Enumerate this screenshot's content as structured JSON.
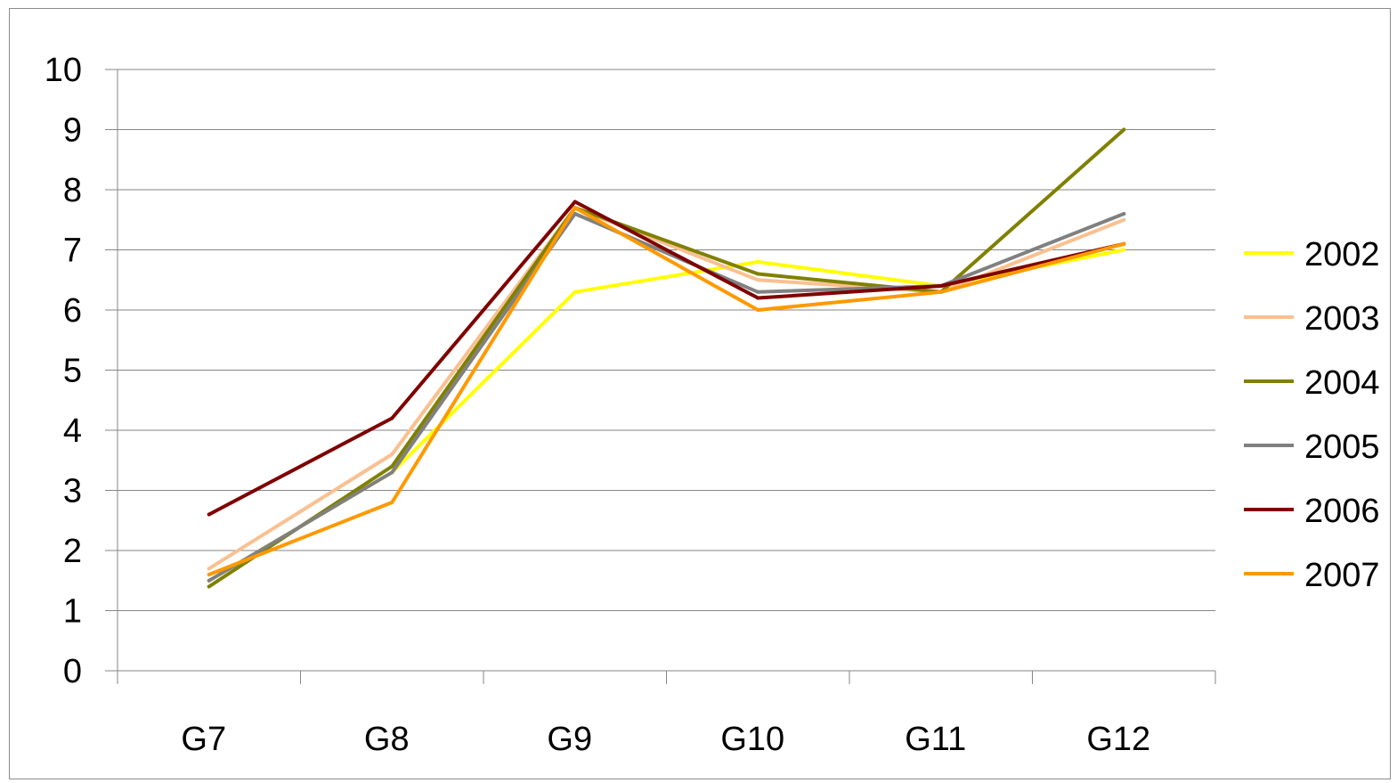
{
  "chart_data": {
    "type": "line",
    "title": "",
    "xlabel": "",
    "ylabel": "",
    "categories": [
      "G7",
      "G8",
      "G9",
      "G10",
      "G11",
      "G12"
    ],
    "ylim": [
      0,
      10
    ],
    "yticks": [
      "0",
      "1",
      "2",
      "3",
      "4",
      "5",
      "6",
      "7",
      "8",
      "9",
      "10"
    ],
    "grid": true,
    "legend_position": "right",
    "series": [
      {
        "name": "2002",
        "color": "#ffff00",
        "values": [
          1.5,
          3.3,
          6.3,
          6.8,
          6.4,
          7.0
        ]
      },
      {
        "name": "2003",
        "color": "#fac090",
        "values": [
          1.7,
          3.6,
          7.7,
          6.5,
          6.3,
          7.5
        ]
      },
      {
        "name": "2004",
        "color": "#808000",
        "values": [
          1.4,
          3.4,
          7.7,
          6.6,
          6.3,
          9.0
        ]
      },
      {
        "name": "2005",
        "color": "#808080",
        "values": [
          1.5,
          3.3,
          7.6,
          6.3,
          6.4,
          7.6
        ]
      },
      {
        "name": "2006",
        "color": "#7f0000",
        "values": [
          2.6,
          4.2,
          7.8,
          6.2,
          6.4,
          7.1
        ]
      },
      {
        "name": "2007",
        "color": "#ff9900",
        "values": [
          1.6,
          2.8,
          7.7,
          6.0,
          6.3,
          7.1
        ]
      }
    ]
  }
}
